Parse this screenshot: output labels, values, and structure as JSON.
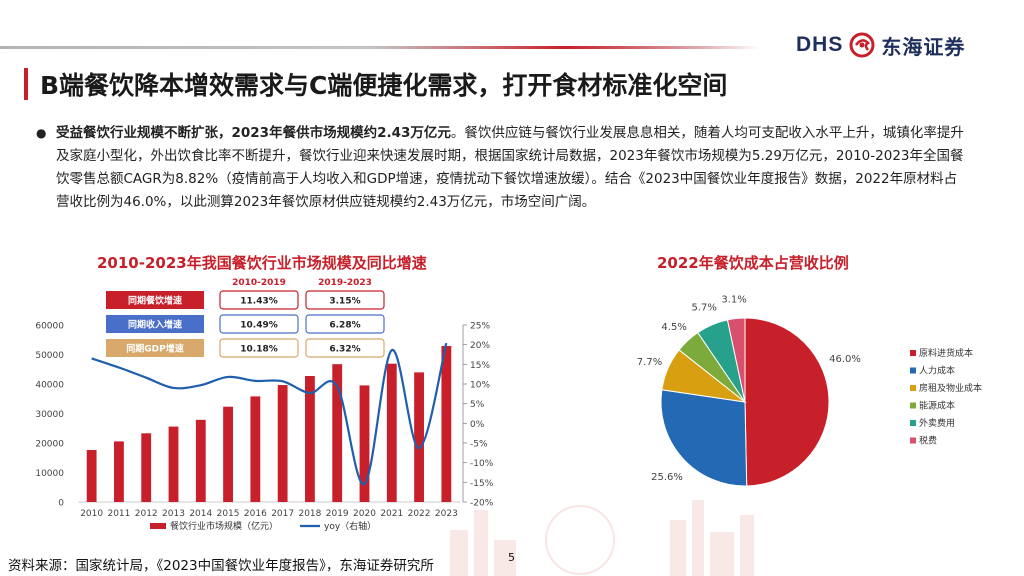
{
  "header": {
    "logo_latin": "DHS",
    "logo_cn": "东海证券",
    "brand_red": "#c8202a",
    "brand_navy": "#1e2f5c"
  },
  "title": "B端餐饮降本增效需求与C端便捷化需求，打开食材标准化空间",
  "bullet": {
    "bold": "受益餐饮行业规模不断扩张，2023年餐供市场规模约2.43万亿元",
    "text": "。餐饮供应链与餐饮行业发展息息相关，随着人均可支配收入水平上升，城镇化率提升及家庭小型化，外出饮食比率不断提升，餐饮行业迎来快速发展时期，根据国家统计局数据，2023年餐饮市场规模为5.29万亿元，2010-2023年全国餐饮零售总额CAGR为8.82%（疫情前高于人均收入和GDP增速，疫情扰动下餐饮增速放缓）。结合《2023中国餐饮业年度报告》数据，2022年原材料占营收比例为46.0%，以此测算2023年餐饮原材供应链规模约2.43万亿元，市场空间广阔。"
  },
  "chart_data": [
    {
      "type": "bar",
      "title": "2010-2023年我国餐饮行业市场规模及同比增速",
      "categories": [
        "2010",
        "2011",
        "2012",
        "2013",
        "2014",
        "2015",
        "2016",
        "2017",
        "2018",
        "2019",
        "2020",
        "2021",
        "2022",
        "2023"
      ],
      "series": [
        {
          "name": "餐饮行业市场规模（亿元）",
          "type": "bar",
          "axis": "left",
          "color": "#c8202a",
          "values": [
            17636,
            20543,
            23283,
            25569,
            27860,
            32310,
            35799,
            39644,
            42716,
            46721,
            39527,
            46895,
            43941,
            52890
          ]
        },
        {
          "name": "yoy（右轴）",
          "type": "line",
          "axis": "right",
          "color": "#1f5fae",
          "values": [
            0.165,
            0.142,
            0.116,
            0.09,
            0.097,
            0.118,
            0.108,
            0.107,
            0.077,
            0.094,
            -0.154,
            0.186,
            -0.063,
            0.204
          ]
        }
      ],
      "ylim_left": [
        0,
        60000
      ],
      "yticks_left": [
        "0",
        "10000",
        "20000",
        "30000",
        "40000",
        "50000",
        "60000"
      ],
      "ylim_right": [
        -0.2,
        0.25
      ],
      "yticks_right": [
        "-20%",
        "-15%",
        "-10%",
        "-5%",
        "0%",
        "5%",
        "10%",
        "15%",
        "20%",
        "25%"
      ],
      "table": {
        "headers": [
          "2010-2019",
          "2019-2023"
        ],
        "rows": [
          {
            "label": "同期餐饮增速",
            "values": [
              "11.43%",
              "3.15%"
            ],
            "color": "#c8202a"
          },
          {
            "label": "同期收入增速",
            "values": [
              "10.49%",
              "6.28%"
            ],
            "color": "#4a6fc8"
          },
          {
            "label": "同期GDP增速",
            "values": [
              "10.18%",
              "6.32%"
            ],
            "color": "#d8a96a"
          }
        ]
      },
      "legend": "bottom",
      "grid": false
    },
    {
      "type": "pie",
      "title": "2022年餐饮成本占营收比例",
      "slices": [
        {
          "name": "原料进货成本",
          "value": 46.0,
          "label": "46.0%",
          "color": "#c8202a"
        },
        {
          "name": "人力成本",
          "value": 25.6,
          "label": "25.6%",
          "color": "#2469b4"
        },
        {
          "name": "房租及物业成本",
          "value": 7.7,
          "label": "7.7%",
          "color": "#d8a011"
        },
        {
          "name": "能源成本",
          "value": 4.5,
          "label": "4.5%",
          "color": "#7cab3c"
        },
        {
          "name": "外卖费用",
          "value": 5.7,
          "label": "5.7%",
          "color": "#27a08c"
        },
        {
          "name": "税费",
          "value": 3.1,
          "label": "3.1%",
          "color": "#d9506c"
        }
      ],
      "legend": "right"
    }
  ],
  "footer": {
    "source": "资料来源：国家统计局，《2023中国餐饮业年度报告》，东海证券研究所",
    "page": "5"
  }
}
